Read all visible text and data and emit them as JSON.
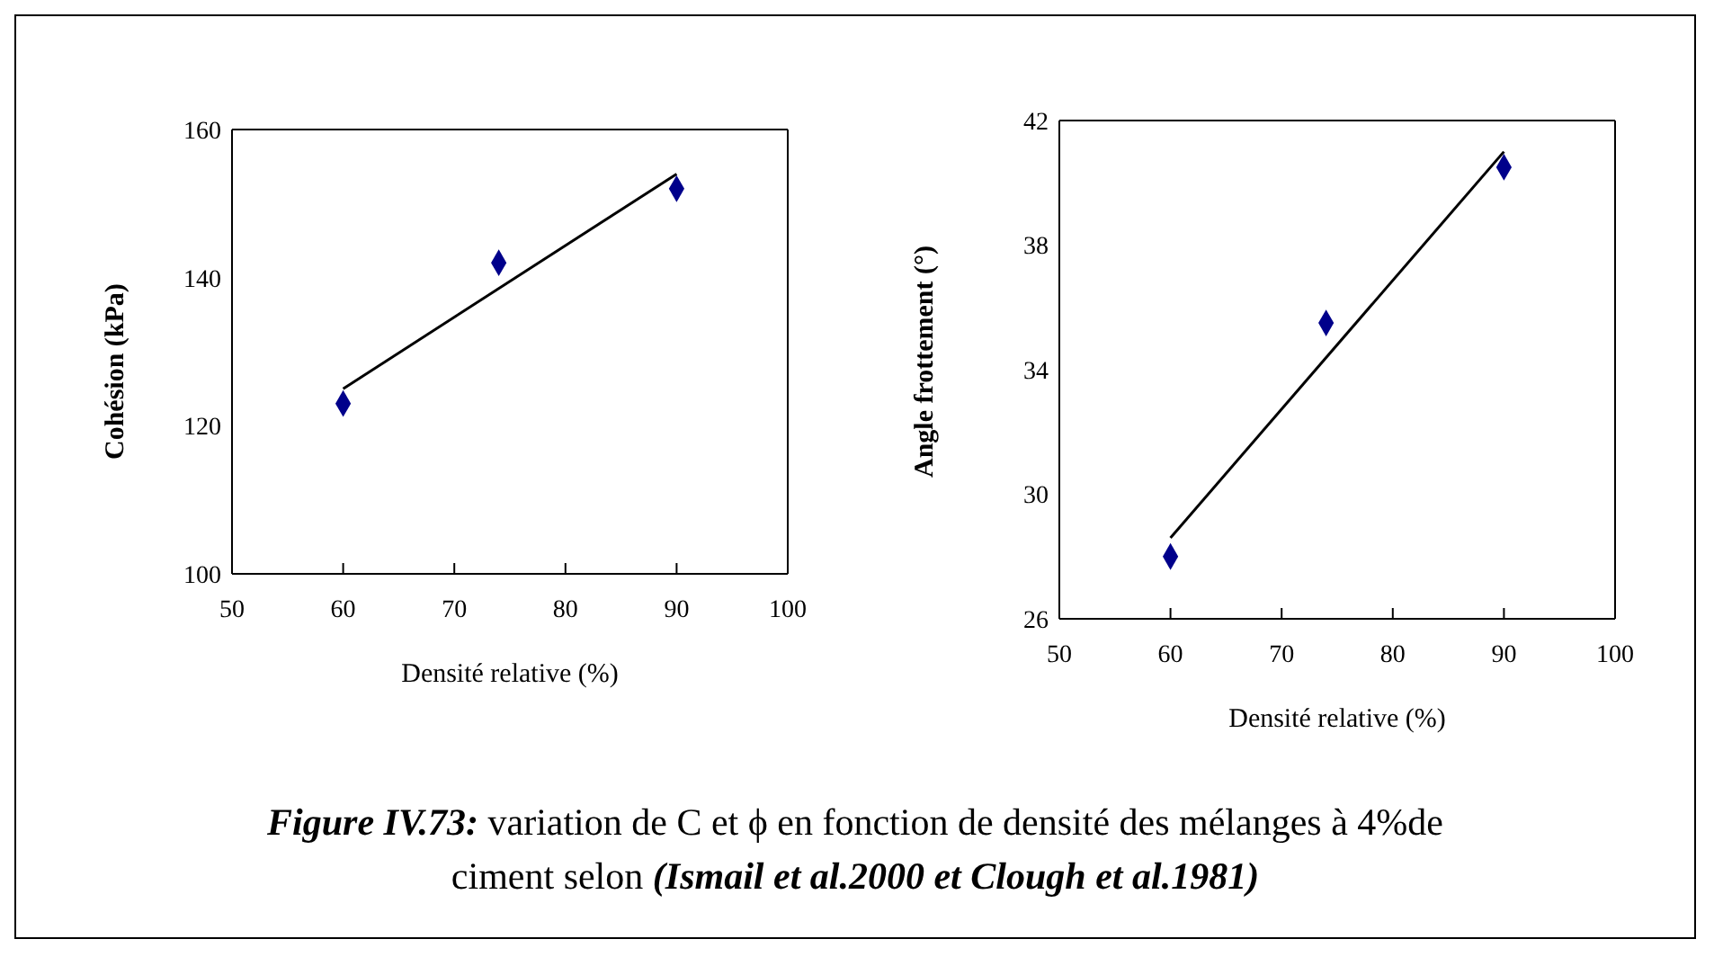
{
  "chart_data": [
    {
      "type": "scatter",
      "xlabel": "Densité relative (%)",
      "ylabel": "Cohésion (kPa)",
      "xlim": [
        50,
        100
      ],
      "xticks": [
        50,
        60,
        70,
        80,
        90,
        100
      ],
      "ylim": [
        100,
        160
      ],
      "yticks": [
        100,
        120,
        140,
        160
      ],
      "series": [
        {
          "color": "#00008b",
          "marker": "diamond",
          "x": [
            60,
            74,
            90
          ],
          "values": [
            123,
            142,
            152
          ]
        },
        {
          "type": "line",
          "color": "#000000",
          "marker": "none",
          "line_style": "solid",
          "x": [
            60,
            90
          ],
          "values": [
            125,
            154
          ]
        }
      ]
    },
    {
      "type": "scatter",
      "xlabel": "Densité relative (%)",
      "ylabel": "Angle frottement (°)",
      "xlim": [
        50,
        100
      ],
      "xticks": [
        50,
        60,
        70,
        80,
        90,
        100
      ],
      "ylim": [
        26,
        42
      ],
      "yticks": [
        26,
        30,
        34,
        38,
        42
      ],
      "series": [
        {
          "color": "#00008b",
          "marker": "diamond",
          "x": [
            60,
            74,
            90
          ],
          "values": [
            28,
            35.5,
            40.5
          ]
        },
        {
          "type": "line",
          "color": "#000000",
          "marker": "none",
          "line_style": "solid",
          "x": [
            60,
            90
          ],
          "values": [
            28.6,
            41
          ]
        }
      ],
      "annotations": [
        "Figure IV.73:",
        " variation de C et ϕ en fonction de densité des mélanges à 4%de ciment selon ",
        "(Ismail et al.2000 et Clough et al.1981)"
      ]
    }
  ]
}
